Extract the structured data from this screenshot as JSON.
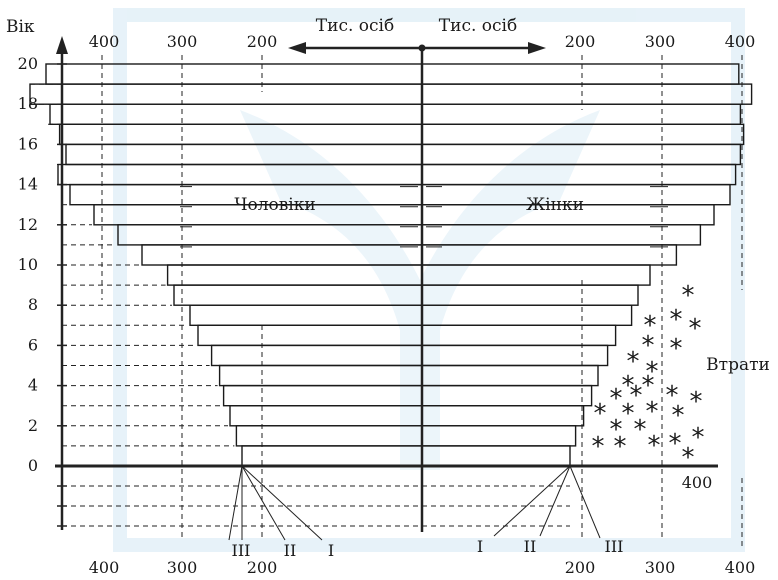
{
  "chart_data": {
    "type": "population_pyramid",
    "title": "",
    "y_axis_label": "Вік",
    "y_ticks": [
      0,
      2,
      4,
      6,
      8,
      10,
      12,
      14,
      16,
      18,
      20
    ],
    "top_x_ticks_left": [
      "400",
      "300",
      "200"
    ],
    "top_x_ticks_right": [
      "200",
      "300",
      "400"
    ],
    "bottom_x_ticks_left": [
      "400",
      "300",
      "200"
    ],
    "bottom_x_ticks_right": [
      "200",
      "300",
      "400"
    ],
    "mid_right_tick": "400",
    "x_unit_left": "Тис. осіб",
    "x_unit_right": "Тис. осіб",
    "left_group_label": "Чоловіки",
    "right_group_label": "Жінки",
    "losses_label": "Втрати",
    "cohort_labels_left": [
      "III",
      "II",
      "I"
    ],
    "cohort_labels_right": [
      "I",
      "II",
      "III"
    ],
    "age_groups": [
      "0-1",
      "1-2",
      "2-3",
      "3-4",
      "4-5",
      "5-6",
      "6-7",
      "7-8",
      "8-9",
      "9-10",
      "10-11",
      "11-12",
      "12-13",
      "13-14",
      "14-15",
      "15-16",
      "16-17",
      "17-18",
      "18-19",
      "19-20"
    ],
    "men_thousands": [
      225,
      232,
      240,
      248,
      253,
      263,
      280,
      290,
      310,
      318,
      350,
      380,
      410,
      440,
      455,
      445,
      453,
      465,
      490,
      470
    ],
    "women_thousands": [
      185,
      192,
      202,
      212,
      220,
      232,
      242,
      262,
      270,
      285,
      318,
      348,
      365,
      385,
      392,
      398,
      402,
      398,
      412,
      396
    ],
    "losses_mark": "*"
  }
}
